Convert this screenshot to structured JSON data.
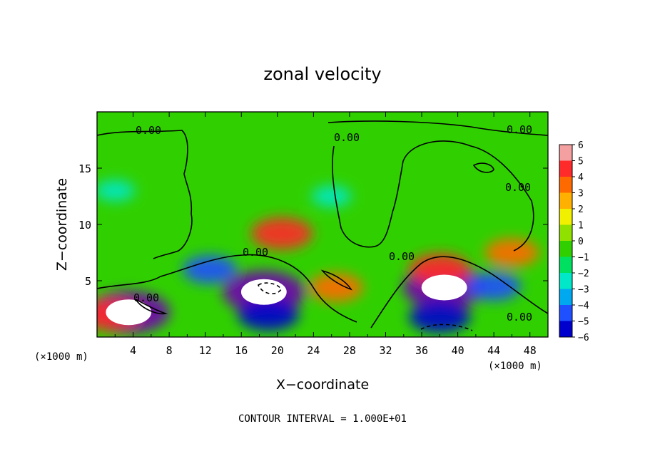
{
  "chart_data": {
    "type": "heatmap",
    "title": "zonal velocity",
    "xlabel": "X−coordinate",
    "ylabel": "Z−coordinate",
    "x_unit": "(×1000 m)",
    "y_unit": "(×1000 m)",
    "xlim": [
      0,
      50
    ],
    "ylim": [
      0,
      20
    ],
    "x_ticks": [
      4,
      8,
      12,
      16,
      20,
      24,
      28,
      32,
      36,
      40,
      44,
      48
    ],
    "y_ticks": [
      5,
      10,
      15
    ],
    "footer": "CONTOUR INTERVAL = 1.000E+01",
    "contour_label": "0.00",
    "colorbar": {
      "ticks": [
        "6",
        "5",
        "4",
        "3",
        "2",
        "1",
        "0",
        "−1",
        "−2",
        "−3",
        "−4",
        "−5",
        "−6"
      ],
      "colors": [
        "#f4a0a0",
        "#ff2a2a",
        "#ff6a00",
        "#ffb000",
        "#f0f000",
        "#90e000",
        "#30d000",
        "#00e060",
        "#00e8c8",
        "#00a8f0",
        "#1e50ff",
        "#0000cc",
        "#7000b0"
      ]
    },
    "features": [
      {
        "x": 18.5,
        "z": 4.0,
        "value": -12
      },
      {
        "x": 38.5,
        "z": 4.4,
        "value": -12
      },
      {
        "x": 3.5,
        "z": 2.2,
        "value": -9
      },
      {
        "x": 20.5,
        "z": 9.2,
        "value": 5
      },
      {
        "x": 38.0,
        "z": 6.0,
        "value": 5
      },
      {
        "x": 46.0,
        "z": 7.5,
        "value": 4
      },
      {
        "x": 26.5,
        "z": 4.4,
        "value": 4
      },
      {
        "x": 1.5,
        "z": 2.0,
        "value": 5
      },
      {
        "x": 12.5,
        "z": 6.0,
        "value": -4
      },
      {
        "x": 19.0,
        "z": 2.0,
        "value": -5
      },
      {
        "x": 38.0,
        "z": 1.8,
        "value": -5
      },
      {
        "x": 2.0,
        "z": 13.0,
        "value": -2
      },
      {
        "x": 26.0,
        "z": 12.5,
        "value": -2
      },
      {
        "x": 44.0,
        "z": 4.5,
        "value": -4
      }
    ]
  }
}
